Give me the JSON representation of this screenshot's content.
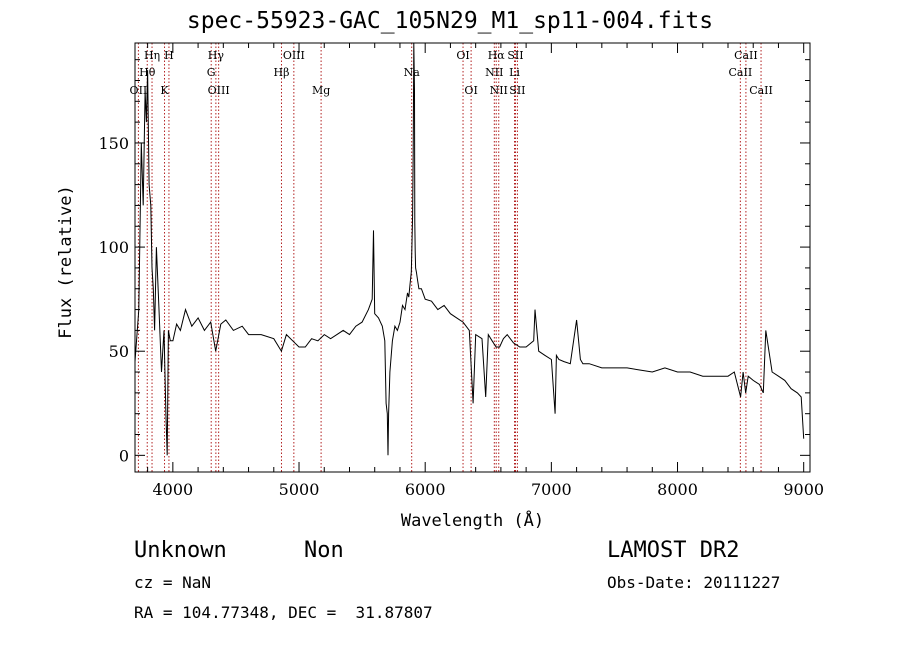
{
  "title": "spec-55923-GAC_105N29_M1_sp11-004.fits",
  "footer": {
    "class": "Unknown",
    "subclass": "Non",
    "cz": "cz = NaN",
    "radec": "RA = 104.77348, DEC =  31.87807",
    "survey": "LAMOST DR2",
    "obs_date": "Obs-Date: 20111227"
  },
  "chart_data": {
    "type": "line",
    "title": "spec-55923-GAC_105N29_M1_sp11-004.fits",
    "xlabel": "Wavelength (Å)",
    "ylabel": "Flux (relative)",
    "xlim": [
      3700,
      9050
    ],
    "ylim": [
      -8,
      198
    ],
    "xticks": [
      4000,
      5000,
      6000,
      7000,
      8000,
      9000
    ],
    "yticks": [
      0,
      50,
      100,
      150
    ],
    "grid": false,
    "line_color": "#000000",
    "marker_color": "#b22222",
    "series": [
      {
        "x": [
          3700,
          3730,
          3750,
          3765,
          3780,
          3790,
          3800,
          3812,
          3825,
          3835,
          3845,
          3855,
          3870,
          3890,
          3910,
          3930,
          3945,
          3955,
          3965,
          3980,
          4000,
          4030,
          4060,
          4100,
          4150,
          4200,
          4250,
          4300,
          4340,
          4380,
          4420,
          4480,
          4550,
          4600,
          4700,
          4800,
          4860,
          4900,
          4950,
          5000,
          5050,
          5100,
          5150,
          5200,
          5250,
          5300,
          5350,
          5400,
          5450,
          5500,
          5550,
          5580,
          5590,
          5600,
          5630,
          5660,
          5680,
          5690,
          5700,
          5705,
          5710,
          5720,
          5740,
          5760,
          5780,
          5800,
          5820,
          5840,
          5860,
          5870,
          5880,
          5890,
          5895,
          5900,
          5905,
          5910,
          5915,
          5918,
          5921,
          5924,
          5930,
          5940,
          5950,
          5970,
          6000,
          6050,
          6100,
          6150,
          6200,
          6250,
          6300,
          6350,
          6380,
          6400,
          6450,
          6480,
          6500,
          6530,
          6562,
          6590,
          6620,
          6650,
          6700,
          6750,
          6800,
          6860,
          6870,
          6900,
          6950,
          7000,
          7030,
          7040,
          7060,
          7100,
          7150,
          7200,
          7230,
          7250,
          7300,
          7400,
          7500,
          7600,
          7700,
          7800,
          7900,
          8000,
          8100,
          8200,
          8300,
          8400,
          8450,
          8500,
          8520,
          8540,
          8560,
          8600,
          8650,
          8680,
          8700,
          8750,
          8800,
          8850,
          8900,
          8950,
          8980,
          9000
        ],
        "y": [
          45,
          70,
          150,
          120,
          175,
          160,
          185,
          130,
          120,
          90,
          80,
          60,
          100,
          70,
          40,
          60,
          20,
          0,
          60,
          55,
          55,
          63,
          60,
          70,
          62,
          66,
          60,
          64,
          50,
          63,
          65,
          60,
          62,
          58,
          58,
          56,
          50,
          58,
          55,
          52,
          52,
          56,
          55,
          58,
          56,
          58,
          60,
          58,
          62,
          64,
          70,
          75,
          108,
          68,
          66,
          62,
          55,
          25,
          20,
          0,
          20,
          40,
          55,
          62,
          60,
          64,
          72,
          70,
          78,
          76,
          82,
          88,
          100,
          115,
          145,
          200,
          175,
          112,
          98,
          90,
          88,
          84,
          80,
          80,
          75,
          74,
          70,
          72,
          68,
          66,
          64,
          60,
          25,
          58,
          56,
          28,
          58,
          55,
          52,
          52,
          56,
          58,
          54,
          52,
          52,
          55,
          70,
          50,
          48,
          46,
          20,
          48,
          46,
          45,
          44,
          65,
          46,
          44,
          44,
          42,
          42,
          42,
          41,
          40,
          42,
          40,
          40,
          38,
          38,
          38,
          40,
          28,
          40,
          30,
          38,
          36,
          34,
          30,
          60,
          40,
          38,
          36,
          32,
          30,
          28,
          8
        ]
      }
    ],
    "lines": [
      {
        "name": "OII",
        "wl": 3727,
        "row": 3
      },
      {
        "name": "Hη",
        "wl": 3835,
        "row": 1
      },
      {
        "name": "Hθ",
        "wl": 3797,
        "row": 2
      },
      {
        "name": "K",
        "wl": 3934,
        "row": 3
      },
      {
        "name": "H",
        "wl": 3969,
        "row": 0
      },
      {
        "name": "Hγ",
        "wl": 4341,
        "row": 1
      },
      {
        "name": "G",
        "wl": 4304,
        "row": 2
      },
      {
        "name": "OIII",
        "wl": 4363,
        "row": 3
      },
      {
        "name": "Hβ",
        "wl": 4861,
        "row": 2
      },
      {
        "name": "OIII",
        "wl": 4959,
        "row": 1
      },
      {
        "name": "Mg",
        "wl": 5175,
        "row": 3
      },
      {
        "name": "Na",
        "wl": 5893,
        "row": 2
      },
      {
        "name": "OI",
        "wl": 6300,
        "row": 1
      },
      {
        "name": "OI",
        "wl": 6364,
        "row": 3
      },
      {
        "name": "Hα",
        "wl": 6563,
        "row": 1
      },
      {
        "name": "NII",
        "wl": 6548,
        "row": 2
      },
      {
        "name": "NII",
        "wl": 6583,
        "row": 3
      },
      {
        "name": "SII",
        "wl": 6716,
        "row": 1
      },
      {
        "name": "Li",
        "wl": 6708,
        "row": 2
      },
      {
        "name": "SII",
        "wl": 6731,
        "row": 3
      },
      {
        "name": "CaII",
        "wl": 8542,
        "row": 1
      },
      {
        "name": "CaII",
        "wl": 8498,
        "row": 2
      },
      {
        "name": "CaII",
        "wl": 8662,
        "row": 3
      }
    ]
  }
}
